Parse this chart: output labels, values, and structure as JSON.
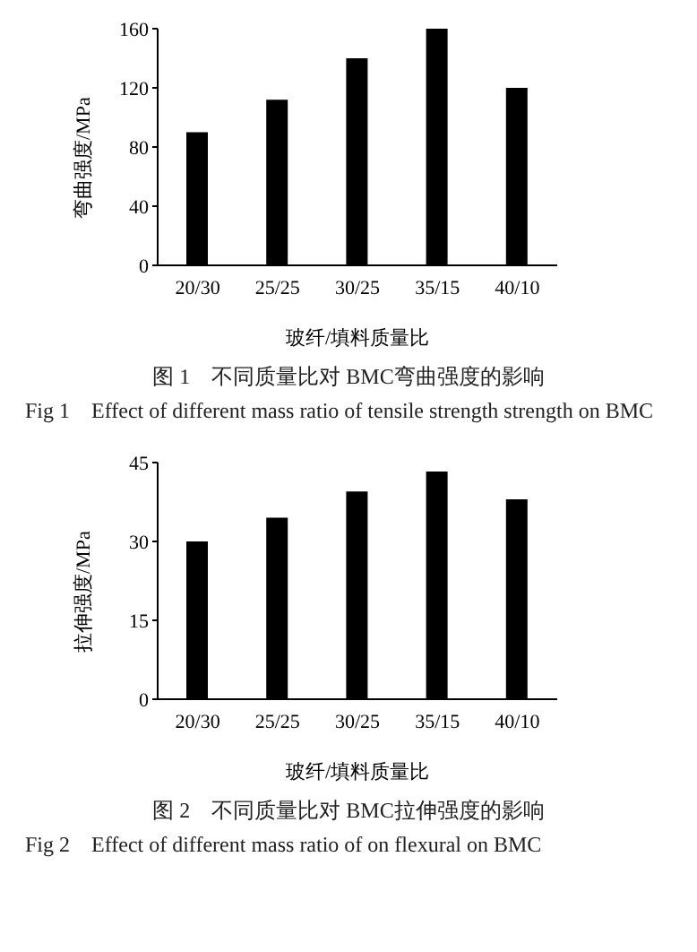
{
  "chart_data": [
    {
      "type": "bar",
      "categories": [
        "20/30",
        "25/25",
        "30/25",
        "35/15",
        "40/10"
      ],
      "values": [
        90,
        112,
        140,
        160,
        120
      ],
      "color": "#000000",
      "ylim": [
        0,
        160
      ],
      "yticks": [
        0,
        40,
        80,
        120,
        160
      ],
      "xlabel": "玻纤/填料质量比",
      "ylabel": "弯曲强度/MPa",
      "annotations": [
        "图 1　不同质量比对 BMC弯曲强度的影响",
        "Fig 1　Effect of different mass ratio of tensile strength strength on BMC"
      ]
    },
    {
      "type": "bar",
      "categories": [
        "20/30",
        "25/25",
        "30/25",
        "35/15",
        "40/10"
      ],
      "values": [
        30,
        34.5,
        39.5,
        43.3,
        38
      ],
      "color": "#000000",
      "ylim": [
        0,
        45
      ],
      "yticks": [
        0,
        15,
        30,
        45
      ],
      "xlabel": "玻纤/填料质量比",
      "ylabel": "拉伸强度/MPa",
      "annotations": [
        "图 2　不同质量比对 BMC拉伸强度的影响",
        "Fig 2　Effect of different mass ratio of on flexural on BMC"
      ]
    }
  ]
}
